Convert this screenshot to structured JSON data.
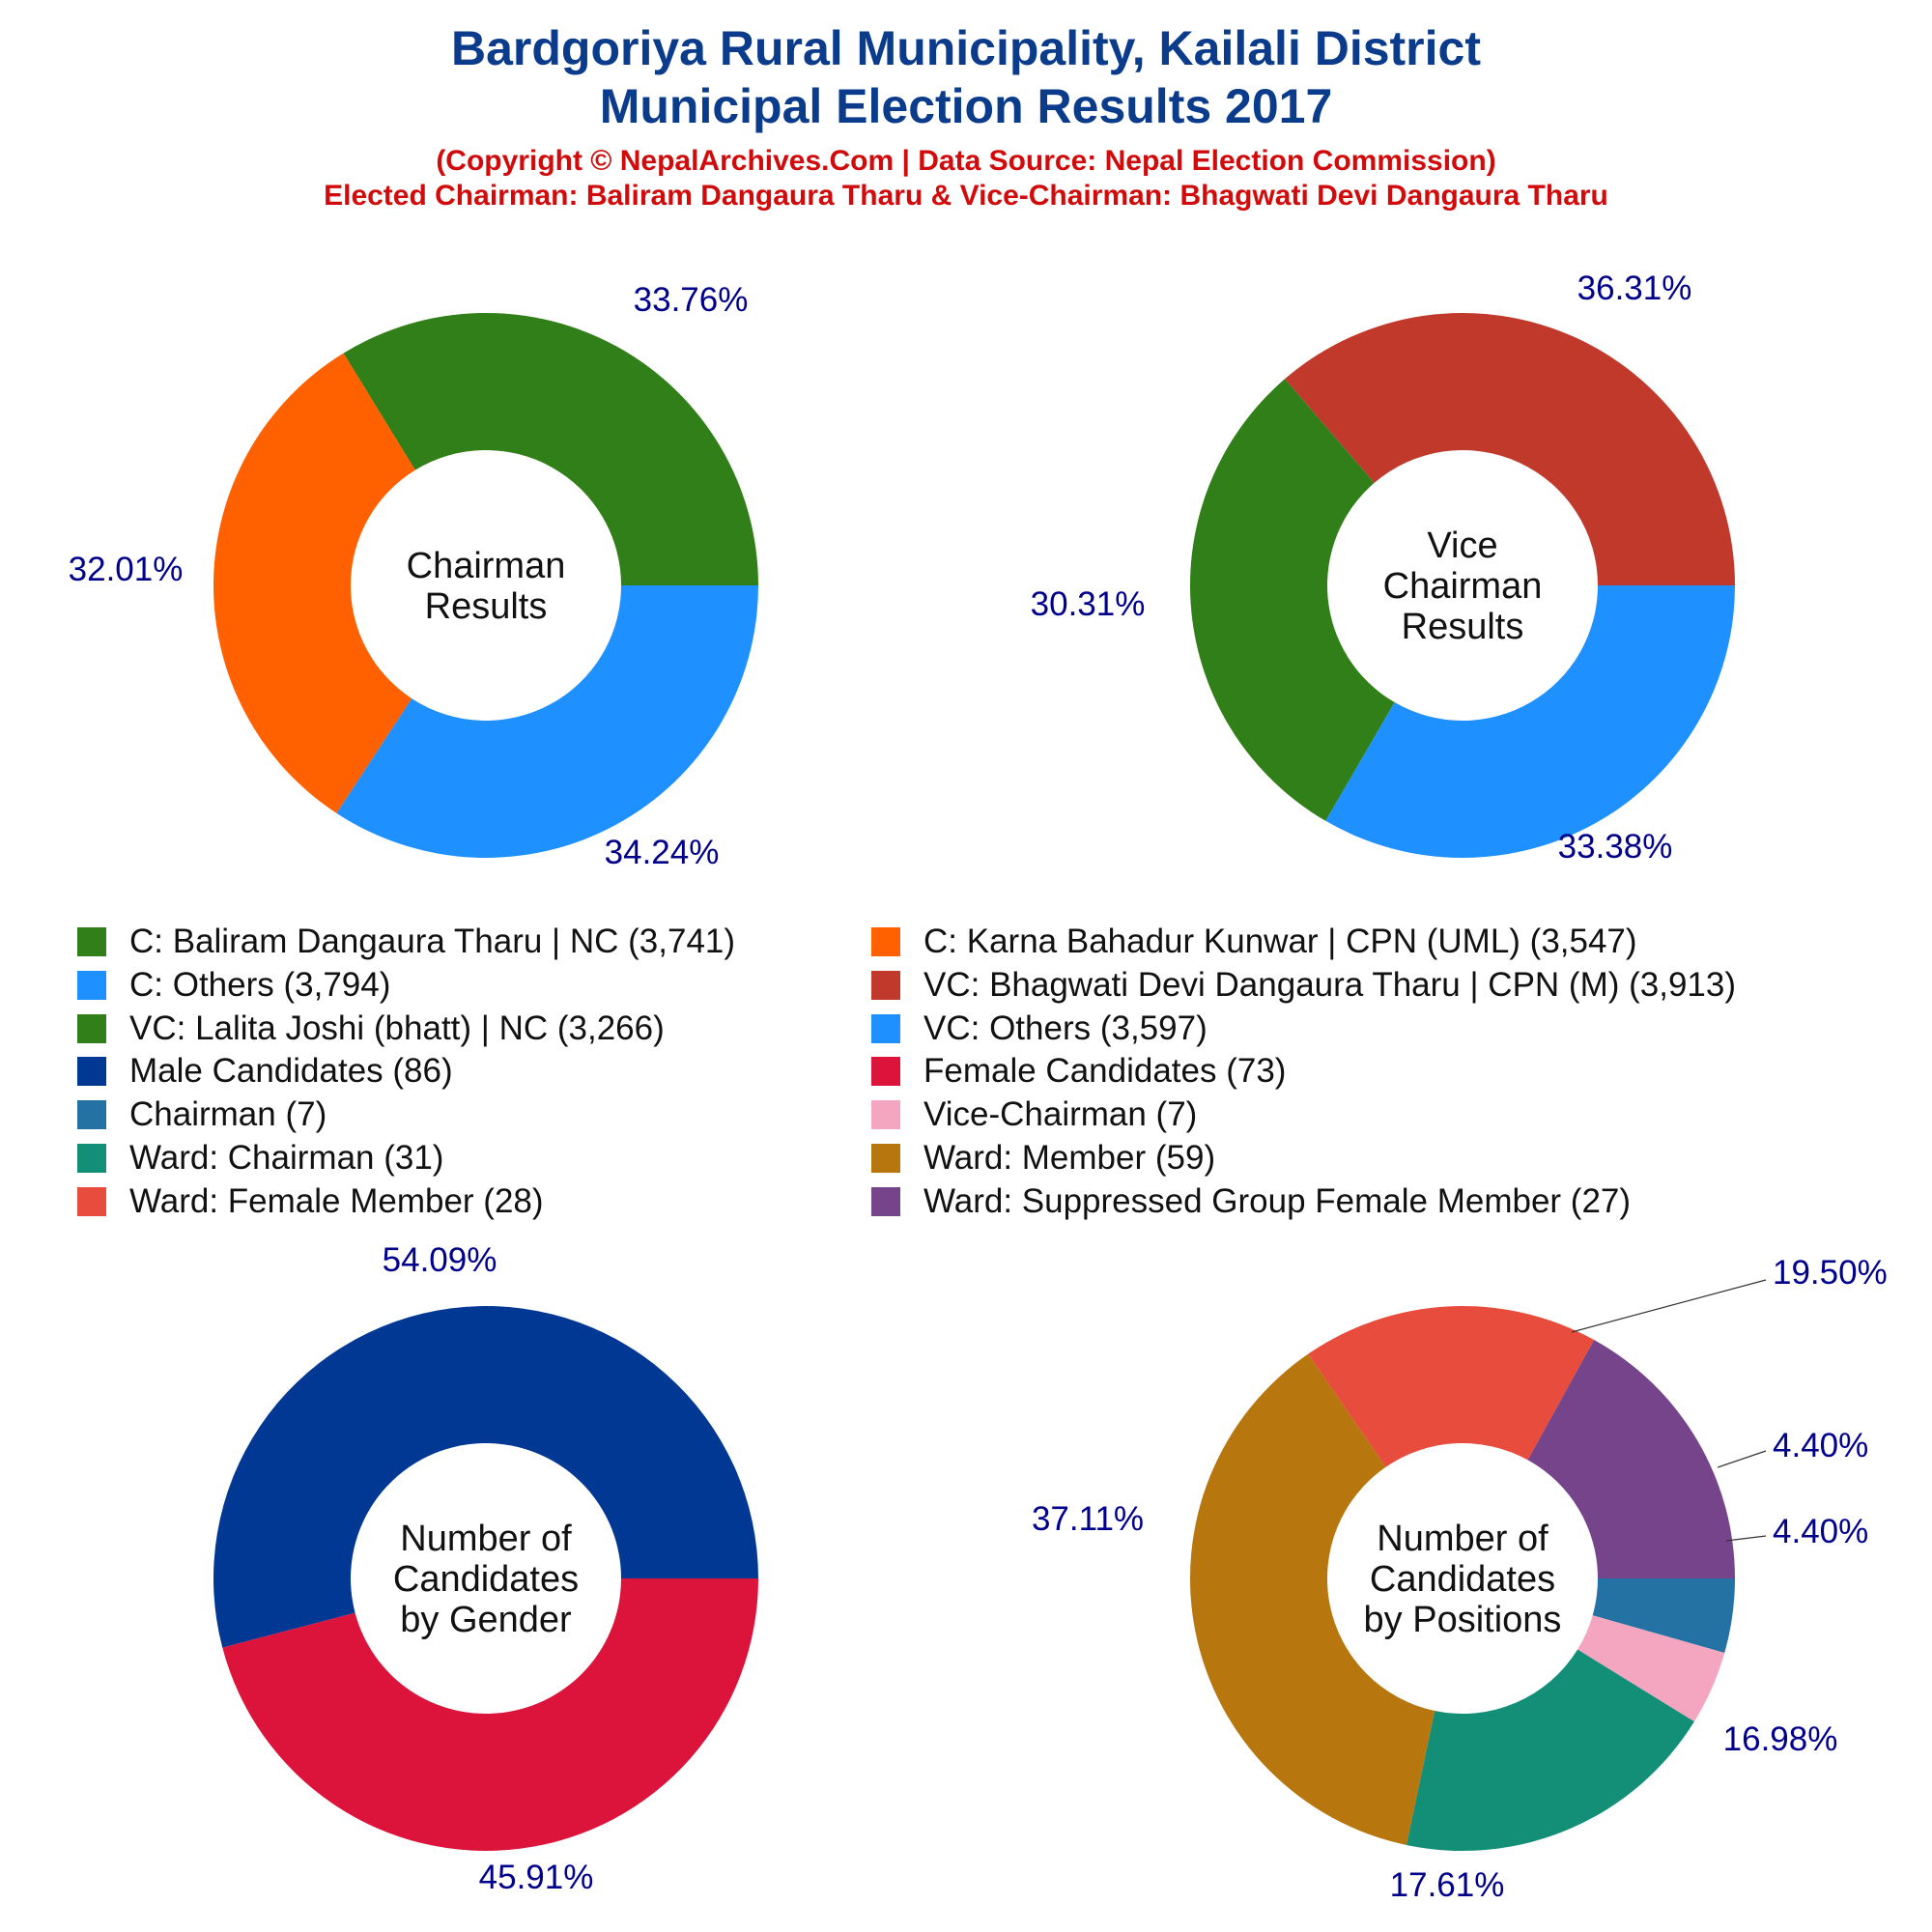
{
  "header": {
    "title_line1": "Bardgoriya Rural Municipality, Kailali District",
    "title_line2": "Municipal Election Results 2017",
    "subtitle_line1": "(Copyright © NepalArchives.Com | Data Source: Nepal Election Commission)",
    "subtitle_line2": "Elected Chairman: Baliram Dangaura Tharu & Vice-Chairman: Bhagwati Devi Dangaura Tharu"
  },
  "legend": {
    "items": [
      {
        "label": "C: Baliram Dangaura Tharu | NC (3,741)",
        "color": "#317f18"
      },
      {
        "label": "C: Karna Bahadur Kunwar | CPN (UML) (3,547)",
        "color": "#ff6100"
      },
      {
        "label": "C: Others (3,794)",
        "color": "#1e90ff"
      },
      {
        "label": "VC: Bhagwati Devi Dangaura Tharu | CPN (M) (3,913)",
        "color": "#c0392b"
      },
      {
        "label": "VC: Lalita Joshi (bhatt) | NC (3,266)",
        "color": "#317f18"
      },
      {
        "label": "VC: Others (3,597)",
        "color": "#1e90ff"
      },
      {
        "label": "Male Candidates (86)",
        "color": "#003893"
      },
      {
        "label": "Female Candidates (73)",
        "color": "#dc143c"
      },
      {
        "label": "Chairman (7)",
        "color": "#2471a3"
      },
      {
        "label": "Vice-Chairman (7)",
        "color": "#f4a6c0"
      },
      {
        "label": "Ward: Chairman (31)",
        "color": "#148f77"
      },
      {
        "label": "Ward: Member (59)",
        "color": "#b7770e"
      },
      {
        "label": "Ward: Female Member (28)",
        "color": "#e74c3c"
      },
      {
        "label": "Ward: Suppressed Group Female Member (27)",
        "color": "#76448a"
      }
    ]
  },
  "chart_data": [
    {
      "type": "pie",
      "center_label": [
        "Chairman",
        "Results"
      ],
      "slices": [
        {
          "name": "C: Baliram Dangaura Tharu | NC",
          "value": 3741,
          "pct_label": "33.76%",
          "color": "#317f18"
        },
        {
          "name": "C: Karna Bahadur Kunwar | CPN (UML)",
          "value": 3547,
          "pct_label": "32.01%",
          "color": "#ff6100"
        },
        {
          "name": "C: Others",
          "value": 3794,
          "pct_label": "34.24%",
          "color": "#1e90ff"
        }
      ]
    },
    {
      "type": "pie",
      "center_label": [
        "Vice",
        "Chairman",
        "Results"
      ],
      "slices": [
        {
          "name": "VC: Bhagwati Devi Dangaura Tharu | CPN (M)",
          "value": 3913,
          "pct_label": "36.31%",
          "color": "#c0392b"
        },
        {
          "name": "VC: Lalita Joshi (bhatt) | NC",
          "value": 3266,
          "pct_label": "30.31%",
          "color": "#317f18"
        },
        {
          "name": "VC: Others",
          "value": 3597,
          "pct_label": "33.38%",
          "color": "#1e90ff"
        }
      ]
    },
    {
      "type": "pie",
      "center_label": [
        "Number of",
        "Candidates",
        "by Gender"
      ],
      "slices": [
        {
          "name": "Male Candidates",
          "value": 86,
          "pct_label": "54.09%",
          "color": "#003893"
        },
        {
          "name": "Female Candidates",
          "value": 73,
          "pct_label": "45.91%",
          "color": "#dc143c"
        }
      ]
    },
    {
      "type": "pie",
      "center_label": [
        "Number of",
        "Candidates",
        "by Positions"
      ],
      "slices": [
        {
          "name": "Chairman",
          "value": 7,
          "pct_label": "4.40%",
          "color": "#2471a3"
        },
        {
          "name": "Vice-Chairman",
          "value": 7,
          "pct_label": "4.40%",
          "color": "#f4a6c0"
        },
        {
          "name": "Ward: Chairman",
          "value": 31,
          "pct_label": "19.50%",
          "color": "#148f77"
        },
        {
          "name": "Ward: Member",
          "value": 59,
          "pct_label": "37.11%",
          "color": "#b7770e"
        },
        {
          "name": "Ward: Female Member",
          "value": 28,
          "pct_label": "17.61%",
          "color": "#e74c3c"
        },
        {
          "name": "Ward: Suppressed Group Female Member",
          "value": 27,
          "pct_label": "16.98%",
          "color": "#76448a"
        }
      ]
    }
  ]
}
